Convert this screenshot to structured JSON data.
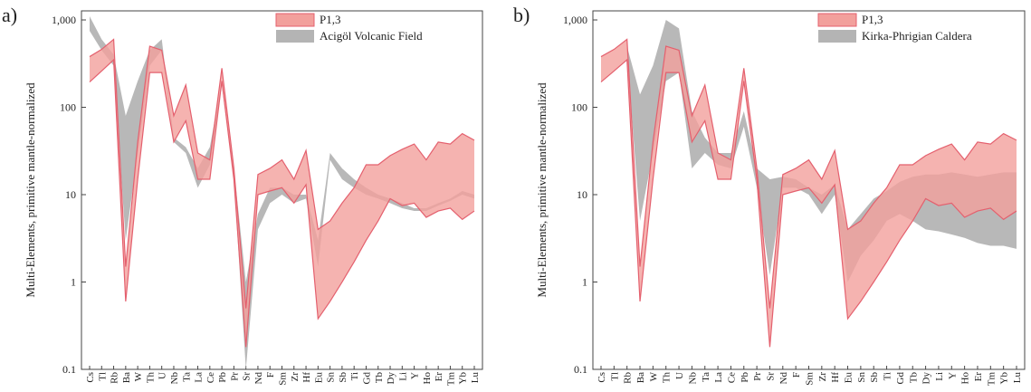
{
  "chart_data": [
    {
      "type": "range",
      "panel_label": "a)",
      "ylabel": "Multi-Elements, primitive mantle-normalized",
      "log_scale": true,
      "legend": "upper right",
      "ylim": [
        0.1,
        1270
      ],
      "yticks": [
        0.1,
        1,
        10,
        100,
        {
          "value": 1000,
          "label": "1,000"
        }
      ],
      "categories": [
        "Cs",
        "Tl",
        "Rb",
        "Ba",
        "W",
        "Th",
        "U",
        "Nb",
        "Ta",
        "La",
        "Ce",
        "Pb",
        "Pr",
        "Sr",
        "Nd",
        "F",
        "Sm",
        "Zr",
        "Hf",
        "Eu",
        "Sn",
        "Sb",
        "Ti",
        "Gd",
        "Tb",
        "Dy",
        "Li",
        "Y",
        "Ho",
        "Er",
        "Tm",
        "Yb",
        "Lu"
      ],
      "series": [
        {
          "name": "P1,3",
          "color": "#f2a09c",
          "high": [
            380,
            460,
            600,
            1.5,
            40,
            500,
            450,
            80,
            180,
            30,
            25,
            280,
            20,
            0.5,
            17,
            20,
            25,
            15,
            32,
            4,
            5,
            8,
            12,
            22,
            22,
            28,
            33,
            38,
            25,
            40,
            38,
            50,
            42
          ],
          "low": [
            195,
            260,
            350,
            0.6,
            15,
            250,
            250,
            40,
            70,
            15,
            15,
            200,
            15,
            0.18,
            10,
            11,
            12,
            8,
            13,
            0.38,
            0.6,
            1,
            1.7,
            3,
            5,
            9,
            7.5,
            8,
            5.5,
            6.5,
            7,
            5.2,
            6.5
          ]
        },
        {
          "name": "Acigöl Volcanic Field",
          "color": "#b4b4b4",
          "high": [
            1100,
            600,
            400,
            80,
            200,
            450,
            600,
            45,
            35,
            20,
            35,
            200,
            20,
            1,
            6,
            12,
            12,
            10,
            10,
            3,
            30,
            20,
            15,
            12,
            10,
            9,
            8,
            7,
            7,
            8,
            9,
            11,
            10
          ],
          "low": [
            750,
            450,
            300,
            3,
            30,
            300,
            450,
            40,
            30,
            12,
            22,
            180,
            15,
            0.1,
            4,
            8,
            10,
            8,
            9,
            1.5,
            25,
            15,
            12,
            10,
            9,
            8,
            7,
            6.5,
            6.5,
            7.5,
            8.5,
            10,
            9
          ]
        }
      ]
    },
    {
      "type": "range",
      "panel_label": "b)",
      "ylabel": "Multi-Elements, primitive mantle-normalized",
      "log_scale": true,
      "legend": "upper right",
      "ylim": [
        0.1,
        1270
      ],
      "yticks": [
        0.1,
        1,
        10,
        100,
        {
          "value": 1000,
          "label": "1,000"
        }
      ],
      "categories": [
        "Cs",
        "Tl",
        "Rb",
        "Ba",
        "W",
        "Th",
        "U",
        "Nb",
        "Ta",
        "La",
        "Ce",
        "Pb",
        "Pr",
        "Sr",
        "Nd",
        "F",
        "Sm",
        "Zr",
        "Hf",
        "Eu",
        "Sn",
        "Sb",
        "Ti",
        "Gd",
        "Tb",
        "Dy",
        "Li",
        "Y",
        "Ho",
        "Er",
        "Tm",
        "Yb",
        "Lu"
      ],
      "series": [
        {
          "name": "P1,3",
          "color": "#f2a09c",
          "high": [
            380,
            460,
            600,
            1.5,
            40,
            500,
            450,
            80,
            180,
            30,
            25,
            280,
            20,
            0.5,
            17,
            20,
            25,
            15,
            32,
            4,
            5,
            8,
            12,
            22,
            22,
            28,
            33,
            38,
            25,
            40,
            38,
            50,
            42
          ],
          "low": [
            195,
            260,
            350,
            0.6,
            15,
            250,
            250,
            40,
            70,
            15,
            15,
            200,
            15,
            0.18,
            10,
            11,
            12,
            8,
            13,
            0.38,
            0.6,
            1,
            1.7,
            3,
            5,
            9,
            7.5,
            8,
            5.5,
            6.5,
            7,
            5.2,
            6.5
          ]
        },
        {
          "name": "Kirka-Phrigian Caldera",
          "color": "#b4b4b4",
          "high": [
            null,
            null,
            500,
            140,
            300,
            1000,
            800,
            90,
            45,
            30,
            30,
            90,
            20,
            15,
            16,
            15,
            12,
            10,
            13,
            4,
            6,
            9,
            11,
            14,
            16,
            17,
            17,
            18,
            17,
            16,
            17,
            18,
            18
          ],
          "low": [
            null,
            null,
            400,
            5,
            30,
            200,
            250,
            20,
            30,
            22,
            20,
            60,
            12,
            1.2,
            12,
            12,
            10,
            6,
            10,
            1,
            2,
            3,
            5,
            6,
            5,
            4,
            3.8,
            3.5,
            3.2,
            2.8,
            2.6,
            2.6,
            2.4
          ]
        }
      ]
    }
  ]
}
